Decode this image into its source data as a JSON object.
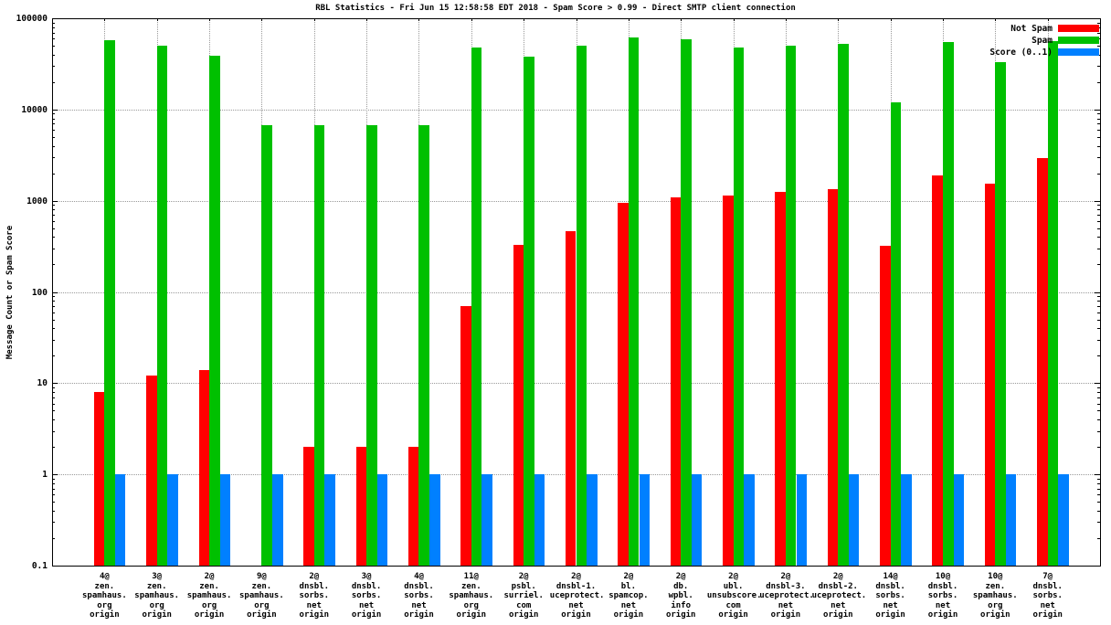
{
  "window": {
    "background": "#ffffff"
  },
  "chart_data": {
    "type": "bar",
    "title": "RBL Statistics - Fri Jun 15 12:58:58 EDT 2018 - Spam Score > 0.99 - Direct SMTP client connection",
    "ylabel": "Message Count or Spam Score",
    "xlabel": "",
    "y_scale": "log10",
    "ylim": [
      0.1,
      100000
    ],
    "y_tick_labels": [
      "100000",
      "10000",
      "1000",
      "100",
      "10",
      "1",
      "0.1"
    ],
    "y_tick_values": [
      100000,
      10000,
      1000,
      100,
      10,
      1,
      0.1
    ],
    "grid": true,
    "legend_position": "top-right-inside",
    "categories": [
      [
        "4@",
        "zen.",
        "spamhaus.",
        "org",
        "origin"
      ],
      [
        "3@",
        "zen.",
        "spamhaus.",
        "org",
        "origin"
      ],
      [
        "2@",
        "zen.",
        "spamhaus.",
        "org",
        "origin"
      ],
      [
        "9@",
        "zen.",
        "spamhaus.",
        "org",
        "origin"
      ],
      [
        "2@",
        "dnsbl.",
        "sorbs.",
        "net",
        "origin"
      ],
      [
        "3@",
        "dnsbl.",
        "sorbs.",
        "net",
        "origin"
      ],
      [
        "4@",
        "dnsbl.",
        "sorbs.",
        "net",
        "origin"
      ],
      [
        "11@",
        "zen.",
        "spamhaus.",
        "org",
        "origin"
      ],
      [
        "2@",
        "psbl.",
        "surriel.",
        "com",
        "origin"
      ],
      [
        "2@",
        "dnsbl-1.",
        "uceprotect.",
        "net",
        "origin"
      ],
      [
        "2@",
        "bl.",
        "spamcop.",
        "net",
        "origin"
      ],
      [
        "2@",
        "db.",
        "wpbl.",
        "info",
        "origin"
      ],
      [
        "2@",
        "ubl.",
        "unsubscore.",
        "com",
        "origin"
      ],
      [
        "2@",
        "dnsbl-3.",
        "uceprotect.",
        "net",
        "origin"
      ],
      [
        "2@",
        "dnsbl-2.",
        "uceprotect.",
        "net",
        "origin"
      ],
      [
        "14@",
        "dnsbl.",
        "sorbs.",
        "net",
        "origin"
      ],
      [
        "10@",
        "dnsbl.",
        "sorbs.",
        "net",
        "origin"
      ],
      [
        "10@",
        "zen.",
        "spamhaus.",
        "org",
        "origin"
      ],
      [
        "7@",
        "dnsbl.",
        "sorbs.",
        "net",
        "origin"
      ]
    ],
    "series": [
      {
        "name": "Not Spam",
        "color": "#ff0000",
        "values": [
          8,
          12,
          14,
          0,
          2,
          2,
          2,
          70,
          330,
          460,
          950,
          1100,
          1150,
          1240,
          1330,
          320,
          1900,
          1530,
          2950
        ]
      },
      {
        "name": "Spam",
        "color": "#00c000",
        "values": [
          58000,
          50000,
          39000,
          6700,
          6700,
          6700,
          6700,
          48000,
          38000,
          50000,
          62000,
          59000,
          48000,
          50000,
          52000,
          12000,
          55000,
          33000,
          56000
        ]
      },
      {
        "name": "Score (0..1)",
        "color": "#0080ff",
        "values": [
          1,
          1,
          1,
          1,
          1,
          1,
          1,
          1,
          1,
          1,
          1,
          1,
          1,
          1,
          1,
          1,
          1,
          1,
          1
        ]
      }
    ],
    "grid_color": "#9a9a9a",
    "frame_color": "#000000"
  }
}
